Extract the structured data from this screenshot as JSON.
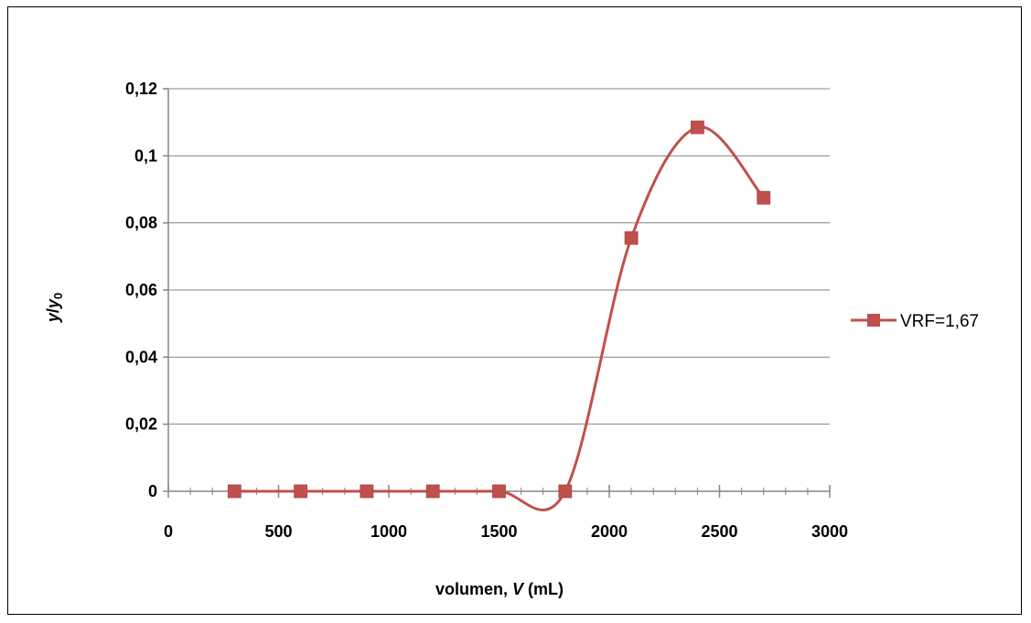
{
  "chart_data": {
    "type": "line",
    "title": "",
    "xlabel": {
      "prefix": "volumen, ",
      "variable": "V",
      "unit": " (mL)"
    },
    "ylabel": {
      "variable": "y",
      "slash": "/",
      "sub_variable": "y",
      "subscript": "0"
    },
    "xlim": [
      0,
      3000
    ],
    "ylim": [
      0,
      0.12
    ],
    "x_ticks": [
      0,
      500,
      1000,
      1500,
      2000,
      2500,
      3000
    ],
    "x_tick_labels": [
      "0",
      "500",
      "1000",
      "1500",
      "2000",
      "2500",
      "3000"
    ],
    "y_ticks": [
      0,
      0.02,
      0.04,
      0.06,
      0.08,
      0.1,
      0.12
    ],
    "y_tick_labels": [
      "0",
      "0,02",
      "0,04",
      "0,06",
      "0,08",
      "0,1",
      "0,12"
    ],
    "grid": {
      "horizontal": true,
      "vertical": false
    },
    "legend": {
      "position": "right"
    },
    "series": [
      {
        "name": "VRF=1,67",
        "color": "#C0504D",
        "marker": "square",
        "smooth": true,
        "x": [
          300,
          600,
          900,
          1200,
          1500,
          1800,
          2100,
          2400,
          2700
        ],
        "y": [
          0,
          0,
          0,
          0,
          0,
          0,
          0.0755,
          0.1085,
          0.0875
        ]
      }
    ]
  }
}
